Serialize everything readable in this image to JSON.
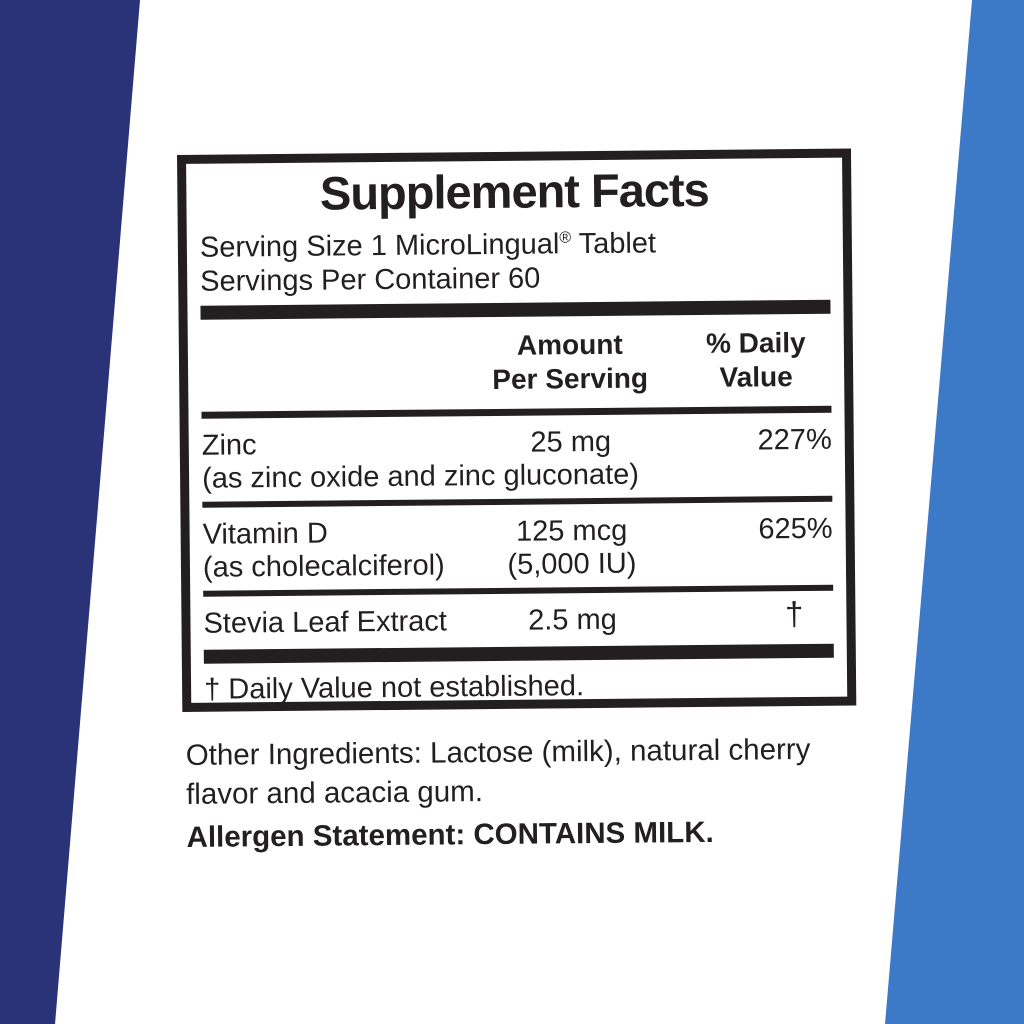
{
  "colors": {
    "left_bar": "#2a3377",
    "right_bar": "#3c7ac8",
    "ink": "#231f20"
  },
  "panel": {
    "title": "Supplement Facts",
    "serving_size_pre": "Serving Size 1 MicroLingual",
    "serving_size_reg": "®",
    "serving_size_post": " Tablet",
    "servings_per_container": "Servings Per Container 60",
    "columns": {
      "amount_line1": "Amount",
      "amount_line2": "Per Serving",
      "dv_line1": "% Daily",
      "dv_line2": "Value"
    },
    "rows": [
      {
        "name": "Zinc",
        "detail": "(as zinc oxide and zinc gluconate)",
        "amount": "25 mg",
        "amount_detail": "",
        "dv": "227%"
      },
      {
        "name": "Vitamin D",
        "detail": "(as cholecalciferol)",
        "amount": "125 mcg",
        "amount_detail": "(5,000 IU)",
        "dv": "625%"
      },
      {
        "name": "Stevia Leaf Extract",
        "detail": "",
        "amount": "2.5 mg",
        "amount_detail": "",
        "dv": "†"
      }
    ],
    "footnote": "† Daily Value not established."
  },
  "below_panel": {
    "other_ingredients_line1": "Other Ingredients: Lactose (milk), natural cherry",
    "other_ingredients_line2": "flavor and acacia gum.",
    "allergen_statement": "Allergen Statement: CONTAINS MILK."
  }
}
